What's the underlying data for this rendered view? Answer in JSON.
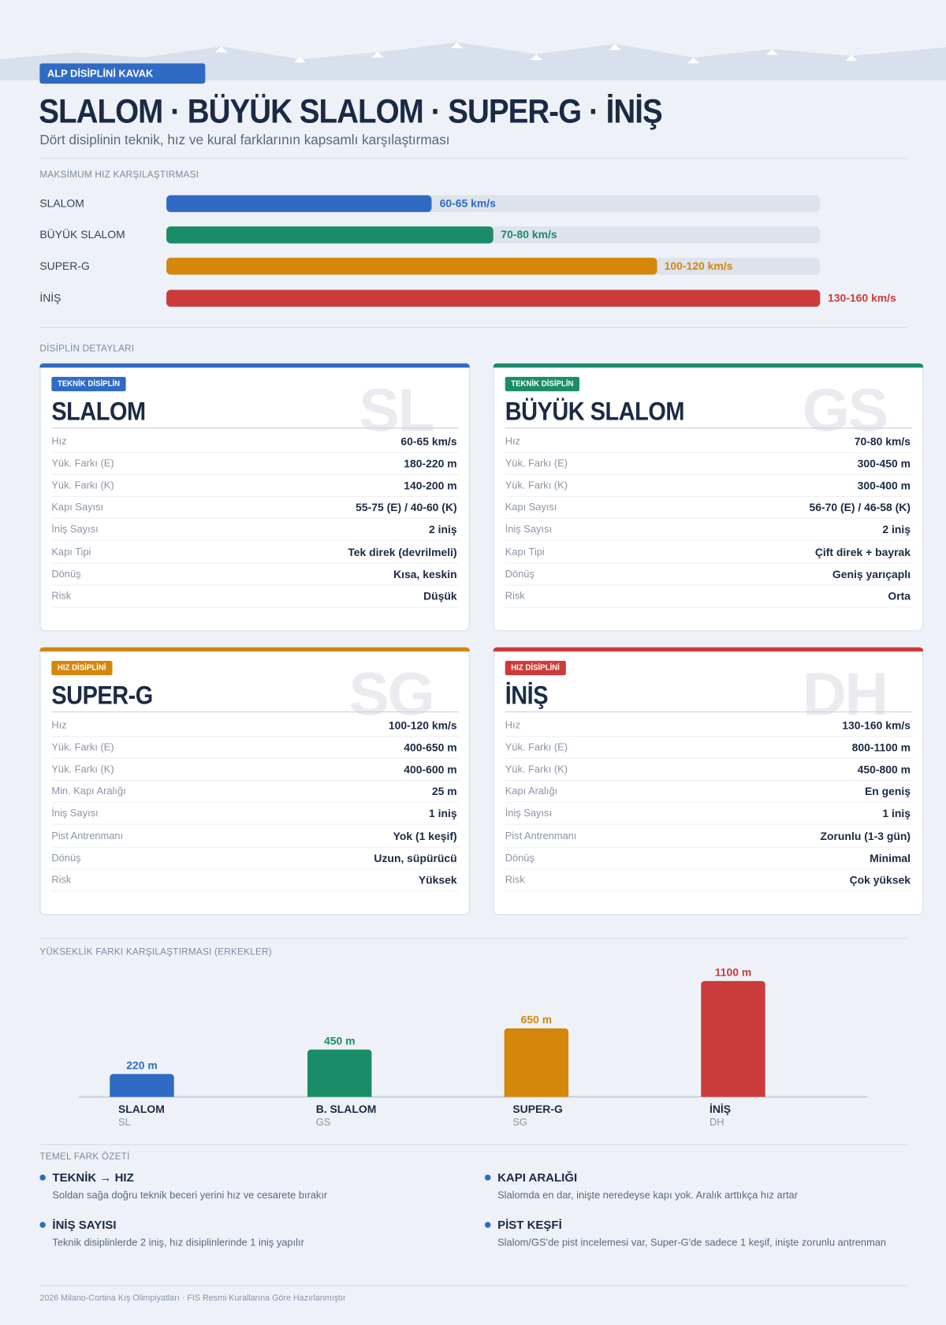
{
  "header": {
    "badge": "ALP DİSİPLİNİ KAVAK",
    "title": "SLALOM · BÜYÜK SLALOM · SUPER-G · İNİŞ",
    "subtitle": "Dört disiplinin teknik, hız ve kural farklarının kapsamlı karşılaştırması"
  },
  "chart_data": [
    {
      "type": "bar",
      "orientation": "horizontal",
      "title": "MAKSİMUM HIZ KARŞILAŞTIRMASI",
      "categories": [
        "SLALOM",
        "BÜYÜK SLALOM",
        "SUPER-G",
        "İNİŞ"
      ],
      "values": [
        65,
        80,
        120,
        160
      ],
      "value_labels": [
        "60-65 km/s",
        "70-80 km/s",
        "100-120 km/s",
        "130-160 km/s"
      ],
      "colors": [
        "#2f6bc4",
        "#1a8c68",
        "#d4870b",
        "#cc3b3b"
      ],
      "xlim": [
        0,
        160
      ]
    },
    {
      "type": "bar",
      "title": "YÜKSEKLİK FARKI KARŞILAŞTIRMASI (ERKEKLER)",
      "categories": [
        "SLALOM",
        "B. SLALOM",
        "SUPER-G",
        "İNİŞ"
      ],
      "subcategories": [
        "SL",
        "GS",
        "SG",
        "DH"
      ],
      "values": [
        220,
        450,
        650,
        1100
      ],
      "value_labels": [
        "220 m",
        "450 m",
        "650 m",
        "1100 m"
      ],
      "colors": [
        "#2f6bc4",
        "#1a8c68",
        "#d4870b",
        "#cc3b3b"
      ],
      "ylim": [
        0,
        1100
      ]
    }
  ],
  "details_title": "DİSİPLİN DETAYLARI",
  "cards": [
    {
      "tag": "TEKNİK DİSİPLİN",
      "title": "SLALOM",
      "abbr": "SL",
      "color": "#2f6bc4",
      "rows": [
        [
          "Hız",
          "60-65 km/s"
        ],
        [
          "Yük. Farkı (E)",
          "180-220 m"
        ],
        [
          "Yük. Farkı (K)",
          "140-200 m"
        ],
        [
          "Kapı Sayısı",
          "55-75 (E) / 40-60 (K)"
        ],
        [
          "İniş Sayısı",
          "2 iniş"
        ],
        [
          "Kapı Tipi",
          "Tek direk (devrilmeli)"
        ],
        [
          "Dönüş",
          "Kısa, keskin"
        ],
        [
          "Risk",
          "Düşük"
        ]
      ]
    },
    {
      "tag": "TEKNİK DİSİPLİN",
      "title": "BÜYÜK SLALOM",
      "abbr": "GS",
      "color": "#1a8c68",
      "rows": [
        [
          "Hız",
          "70-80 km/s"
        ],
        [
          "Yük. Farkı (E)",
          "300-450 m"
        ],
        [
          "Yük. Farkı (K)",
          "300-400 m"
        ],
        [
          "Kapı Sayısı",
          "56-70 (E) / 46-58 (K)"
        ],
        [
          "İniş Sayısı",
          "2 iniş"
        ],
        [
          "Kapı Tipi",
          "Çift direk + bayrak"
        ],
        [
          "Dönüş",
          "Geniş yarıçaplı"
        ],
        [
          "Risk",
          "Orta"
        ]
      ]
    },
    {
      "tag": "HIZ DİSİPLİNİ",
      "title": "SUPER-G",
      "abbr": "SG",
      "color": "#d4870b",
      "rows": [
        [
          "Hız",
          "100-120 km/s"
        ],
        [
          "Yük. Farkı (E)",
          "400-650 m"
        ],
        [
          "Yük. Farkı (K)",
          "400-600 m"
        ],
        [
          "Min. Kapı Aralığı",
          "25 m"
        ],
        [
          "İniş Sayısı",
          "1 iniş"
        ],
        [
          "Pist Antrenmanı",
          "Yok (1 keşif)"
        ],
        [
          "Dönüş",
          "Uzun, süpürücü"
        ],
        [
          "Risk",
          "Yüksek"
        ]
      ]
    },
    {
      "tag": "HIZ DİSİPLİNİ",
      "title": "İNİŞ",
      "abbr": "DH",
      "color": "#cc3b3b",
      "rows": [
        [
          "Hız",
          "130-160 km/s"
        ],
        [
          "Yük. Farkı (E)",
          "800-1100 m"
        ],
        [
          "Yük. Farkı (K)",
          "450-800 m"
        ],
        [
          "Kapı Aralığı",
          "En geniş"
        ],
        [
          "İniş Sayısı",
          "1 iniş"
        ],
        [
          "Pist Antrenmanı",
          "Zorunlu (1-3 gün)"
        ],
        [
          "Dönüş",
          "Minimal"
        ],
        [
          "Risk",
          "Çok yüksek"
        ]
      ]
    }
  ],
  "summary": {
    "title": "TEMEL FARK ÖZETİ",
    "items": [
      {
        "title": "TEKNİK → HIZ",
        "text": "Soldan sağa doğru teknik beceri yerini hız ve cesarete bırakır"
      },
      {
        "title": "KAPI ARALIĞI",
        "text": "Slalomda en dar, inişte neredeyse kapı yok. Aralık arttıkça hız artar"
      },
      {
        "title": "İNİŞ SAYISI",
        "text": "Teknik disiplinlerde 2 iniş, hız disiplinlerinde 1 iniş yapılır"
      },
      {
        "title": "PİST KEŞFİ",
        "text": "Slalom/GS'de pist incelemesi var, Super-G'de sadece 1 keşif, inişte zorunlu antrenman"
      }
    ]
  },
  "footer": "2026 Milano-Cortina Kış Olimpiyatları · FIS Resmi Kurallarına Göre Hazırlanmıştır"
}
